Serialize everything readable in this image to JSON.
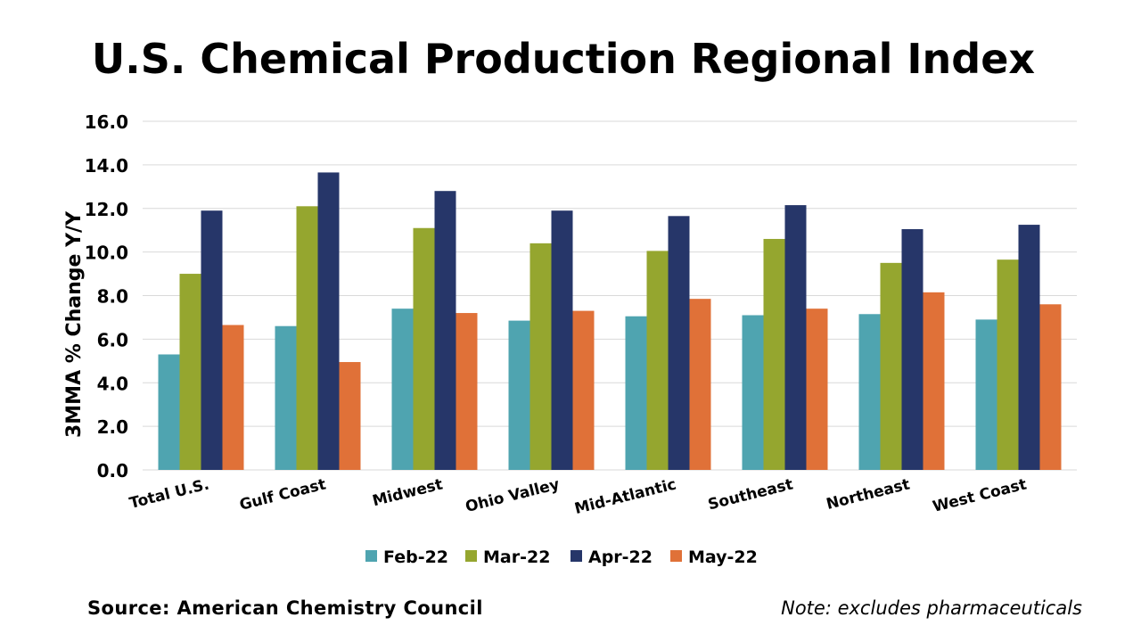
{
  "chart_data": {
    "type": "bar",
    "title": "U.S. Chemical Production Regional Index",
    "ylabel": "3MMA % Change Y/Y",
    "xlabel": "",
    "ylim": [
      0,
      16
    ],
    "yticks": [
      "0.0",
      "2.0",
      "4.0",
      "6.0",
      "8.0",
      "10.0",
      "12.0",
      "14.0",
      "16.0"
    ],
    "grid": true,
    "legend_position": "bottom",
    "categories": [
      "Total U.S.",
      "Gulf Coast",
      "Midwest",
      "Ohio Valley",
      "Mid-Atlantic",
      "Southeast",
      "Northeast",
      "West Coast"
    ],
    "series": [
      {
        "name": "Feb-22",
        "color": "#4fa4b0",
        "values": [
          5.3,
          6.6,
          7.4,
          6.85,
          7.05,
          7.1,
          7.15,
          6.9
        ]
      },
      {
        "name": "Mar-22",
        "color": "#95a62f",
        "values": [
          9.0,
          12.1,
          11.1,
          10.4,
          10.05,
          10.6,
          9.5,
          9.65
        ]
      },
      {
        "name": "Apr-22",
        "color": "#263669",
        "values": [
          11.9,
          13.65,
          12.8,
          11.9,
          11.65,
          12.15,
          11.05,
          11.25
        ]
      },
      {
        "name": "May-22",
        "color": "#e07138",
        "values": [
          6.65,
          4.95,
          7.2,
          7.3,
          7.85,
          7.4,
          8.15,
          7.6
        ]
      }
    ]
  },
  "footer": {
    "source": "Source:  American  Chemistry  Council",
    "note": "Note: excludes pharmaceuticals"
  }
}
